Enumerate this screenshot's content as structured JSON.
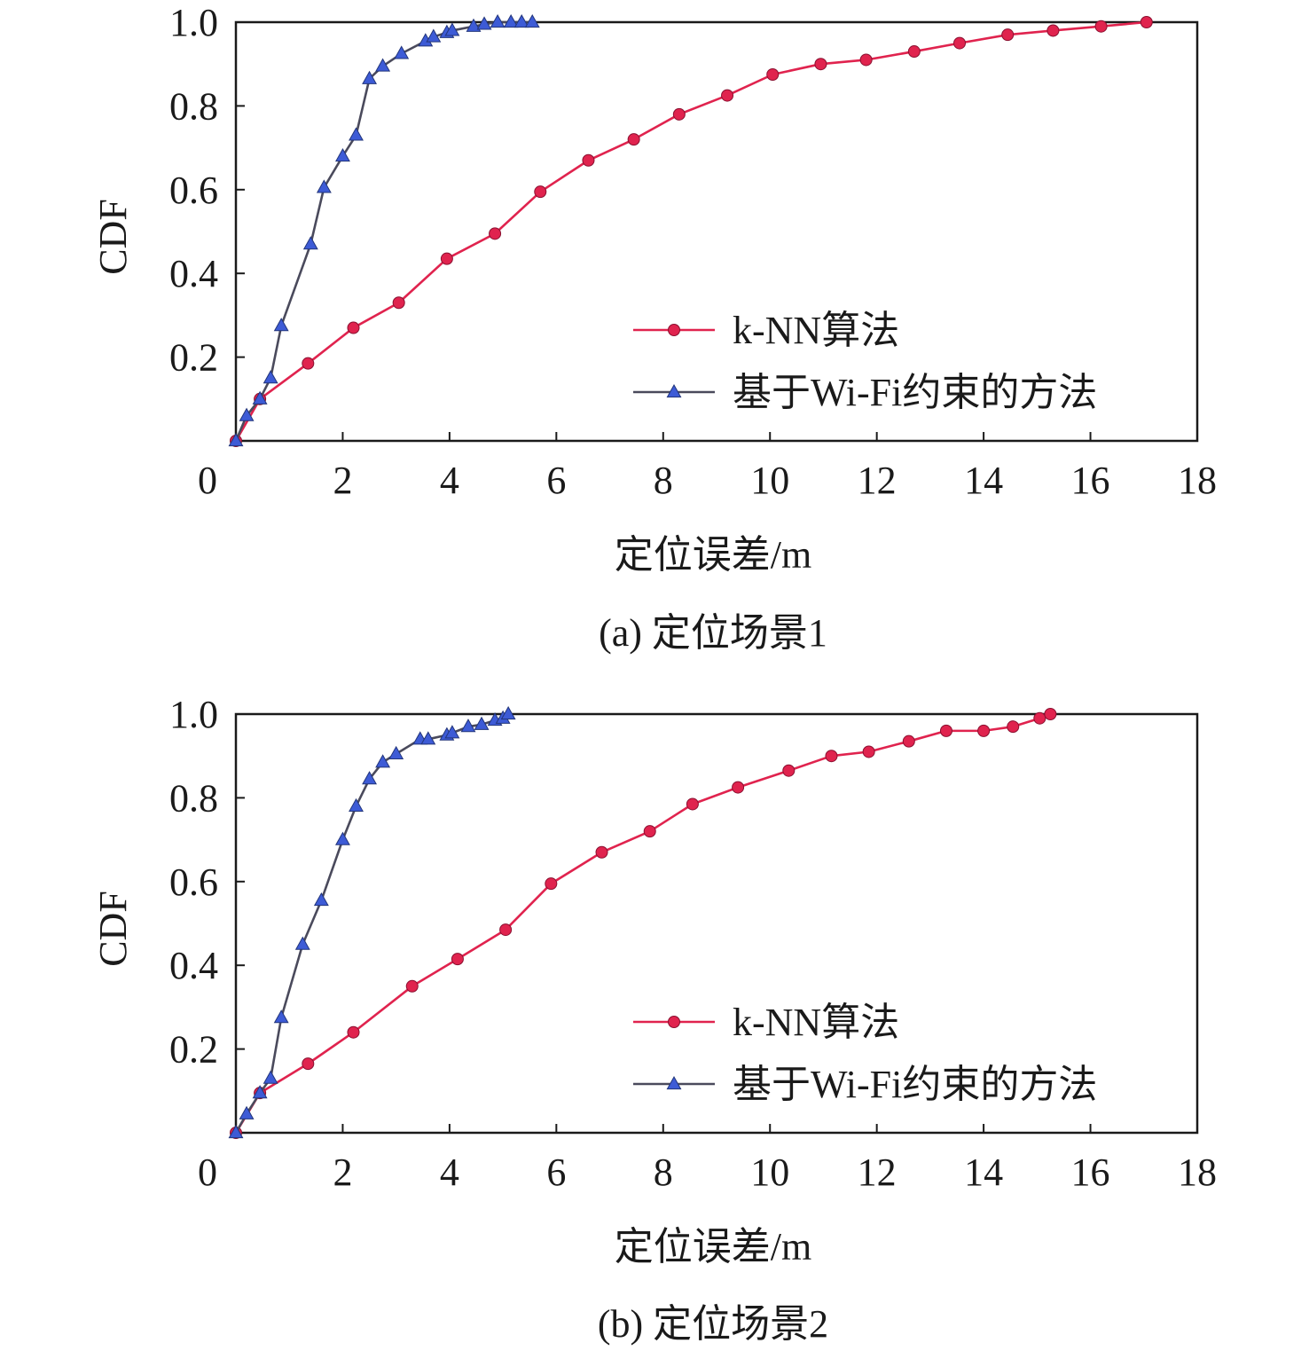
{
  "chart_data": [
    {
      "type": "line",
      "caption": "(a) 定位场景1",
      "xlabel": "定位误差/m",
      "ylabel": "CDF",
      "xlim": [
        0,
        18
      ],
      "ylim": [
        0,
        1
      ],
      "xticks": [
        "0",
        "2",
        "4",
        "6",
        "8",
        "10",
        "12",
        "14",
        "16",
        "18"
      ],
      "yticks": [
        "0.2",
        "0.4",
        "0.6",
        "0.8",
        "1.0"
      ],
      "legend_position": "bottom-right",
      "series": [
        {
          "name": "k-NN算法",
          "color": "#e0234e",
          "line_color": "#e0234e",
          "marker": "circle",
          "x": [
            0.0,
            0.45,
            1.35,
            2.2,
            3.05,
            3.95,
            4.85,
            5.7,
            6.6,
            7.45,
            8.3,
            9.2,
            10.05,
            10.95,
            11.8,
            12.7,
            13.55,
            14.45,
            15.3,
            16.2,
            17.05
          ],
          "y": [
            0.0,
            0.1,
            0.185,
            0.27,
            0.33,
            0.435,
            0.495,
            0.595,
            0.67,
            0.72,
            0.78,
            0.825,
            0.875,
            0.9,
            0.91,
            0.93,
            0.95,
            0.97,
            0.98,
            0.99,
            1.0
          ]
        },
        {
          "name": "基于Wi-Fi约束的方法",
          "color": "#3d5bd6",
          "line_color": "#4a4a5c",
          "marker": "triangle",
          "x": [
            0.0,
            0.2,
            0.45,
            0.65,
            0.85,
            1.4,
            1.65,
            2.0,
            2.25,
            2.5,
            2.75,
            3.1,
            3.55,
            3.7,
            3.95,
            4.05,
            4.45,
            4.65,
            4.9,
            5.15,
            5.35,
            5.55
          ],
          "y": [
            0.0,
            0.06,
            0.1,
            0.15,
            0.275,
            0.47,
            0.605,
            0.68,
            0.73,
            0.865,
            0.895,
            0.925,
            0.955,
            0.965,
            0.975,
            0.98,
            0.99,
            0.995,
            1.0,
            1.0,
            1.0,
            1.0
          ]
        }
      ]
    },
    {
      "type": "line",
      "caption": "(b) 定位场景2",
      "xlabel": "定位误差/m",
      "ylabel": "CDF",
      "xlim": [
        0,
        18
      ],
      "ylim": [
        0,
        1
      ],
      "xticks": [
        "0",
        "2",
        "4",
        "6",
        "8",
        "10",
        "12",
        "14",
        "16",
        "18"
      ],
      "yticks": [
        "0.2",
        "0.4",
        "0.6",
        "0.8",
        "1.0"
      ],
      "legend_position": "bottom-right",
      "series": [
        {
          "name": "k-NN算法",
          "color": "#e0234e",
          "line_color": "#e0234e",
          "marker": "circle",
          "x": [
            0.0,
            0.45,
            1.35,
            2.2,
            3.3,
            4.15,
            5.05,
            5.9,
            6.85,
            7.75,
            8.55,
            9.4,
            10.35,
            11.15,
            11.85,
            12.6,
            13.3,
            14.0,
            14.55,
            15.05,
            15.25
          ],
          "y": [
            0.0,
            0.095,
            0.165,
            0.24,
            0.35,
            0.415,
            0.485,
            0.595,
            0.67,
            0.72,
            0.785,
            0.825,
            0.865,
            0.9,
            0.91,
            0.935,
            0.96,
            0.96,
            0.97,
            0.99,
            1.0
          ]
        },
        {
          "name": "基于Wi-Fi约束的方法",
          "color": "#3d5bd6",
          "line_color": "#4a4a5c",
          "marker": "triangle",
          "x": [
            0.0,
            0.2,
            0.45,
            0.65,
            0.85,
            1.25,
            1.6,
            2.0,
            2.25,
            2.5,
            2.75,
            3.0,
            3.45,
            3.6,
            3.95,
            4.05,
            4.35,
            4.6,
            4.85,
            5.0,
            5.1
          ],
          "y": [
            0.0,
            0.045,
            0.095,
            0.13,
            0.275,
            0.45,
            0.555,
            0.7,
            0.78,
            0.845,
            0.885,
            0.905,
            0.94,
            0.94,
            0.95,
            0.955,
            0.97,
            0.975,
            0.985,
            0.99,
            1.0
          ]
        }
      ]
    }
  ]
}
